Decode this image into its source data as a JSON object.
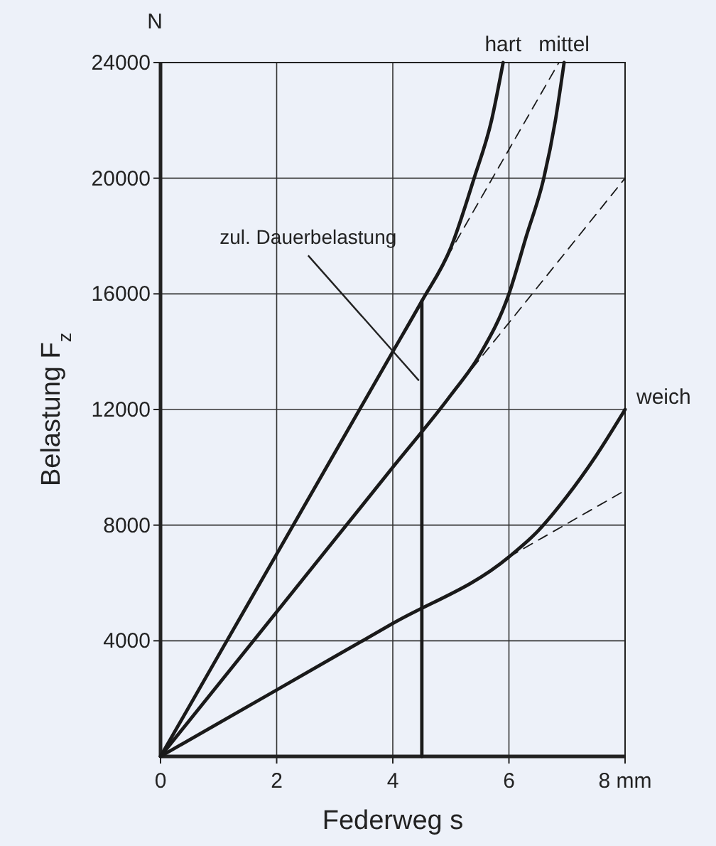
{
  "chart_data": {
    "type": "line",
    "xlabel": "Federweg s",
    "ylabel": "Belastung F$_{z}$",
    "xlim": [
      0,
      8
    ],
    "ylim": [
      0,
      24000
    ],
    "xticks": [
      0,
      2,
      4,
      6,
      {
        "value": 8,
        "label": "8 mm"
      }
    ],
    "yticks": [
      4000,
      8000,
      12000,
      16000,
      20000,
      24000
    ],
    "grid": true,
    "series": [
      {
        "name": "hart",
        "color": "#1a1a1a",
        "x": [
          0,
          1,
          2,
          3,
          4,
          4.5,
          5,
          5.4,
          5.7,
          5.9
        ],
        "values": [
          0,
          3500,
          7000,
          10500,
          14000,
          15750,
          17600,
          20000,
          22000,
          24000
        ]
      },
      {
        "color": "#1a1a1a",
        "line_style": "dashed",
        "x": [
          4.5,
          6.86
        ],
        "values": [
          15750,
          24000
        ]
      },
      {
        "name": "mittel",
        "color": "#1a1a1a",
        "x": [
          0,
          2,
          4,
          5,
          5.5,
          6,
          6.3,
          6.6,
          6.8,
          6.95
        ],
        "values": [
          0,
          5000,
          10000,
          12500,
          13900,
          16000,
          18000,
          20000,
          22000,
          24000
        ]
      },
      {
        "color": "#1a1a1a",
        "line_style": "dashed",
        "x": [
          5,
          8
        ],
        "values": [
          12500,
          20000
        ]
      },
      {
        "name": "weich",
        "color": "#1a1a1a",
        "x": [
          0,
          2,
          4,
          6,
          6.5,
          7,
          7.5,
          8
        ],
        "values": [
          0,
          2300,
          4600,
          6900,
          7800,
          9000,
          10400,
          12000
        ]
      },
      {
        "color": "#1a1a1a",
        "line_style": "dashed",
        "x": [
          6,
          8
        ],
        "values": [
          6900,
          9200
        ]
      },
      {
        "color": "#1a1a1a",
        "x": [
          4.5,
          4.5
        ],
        "values": [
          0,
          15750
        ]
      }
    ],
    "annotations": [
      "N",
      {
        "text": "zul. Dauerbelastung",
        "x": 4.45,
        "y": 13000
      }
    ]
  }
}
